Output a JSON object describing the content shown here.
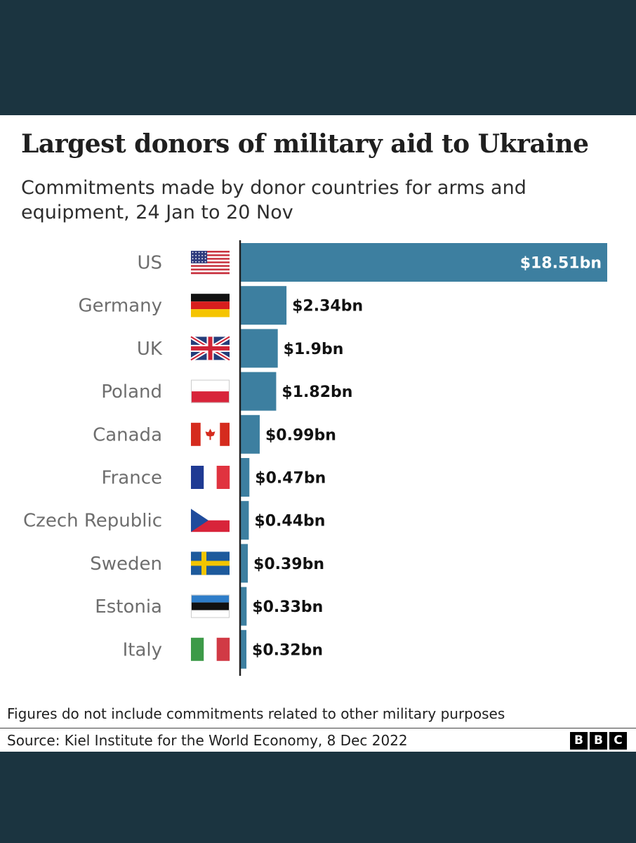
{
  "chart_data": {
    "type": "bar",
    "orientation": "horizontal",
    "title": "Largest donors of military aid to Ukraine",
    "subtitle": "Commitments made by donor countries for arms and equipment, 24 Jan to 20 Nov",
    "categories": [
      "US",
      "Germany",
      "UK",
      "Poland",
      "Canada",
      "France",
      "Czech Republic",
      "Sweden",
      "Estonia",
      "Italy"
    ],
    "values": [
      18.51,
      2.34,
      1.9,
      1.82,
      0.99,
      0.47,
      0.44,
      0.39,
      0.33,
      0.32
    ],
    "data_labels": [
      "$18.51bn",
      "$2.34bn",
      "$1.9bn",
      "$1.82bn",
      "$0.99bn",
      "$0.47bn",
      "$0.44bn",
      "$0.39bn",
      "$0.33bn",
      "$0.32bn"
    ],
    "flags": [
      "us-flag",
      "germany-flag",
      "uk-flag",
      "poland-flag",
      "canada-flag",
      "france-flag",
      "czech-flag",
      "sweden-flag",
      "estonia-flag",
      "italy-flag"
    ],
    "xlim": [
      0,
      18.51
    ],
    "grid": false,
    "bar_color": "#3d7fa0"
  },
  "footer": {
    "note": "Figures do not include commitments related to other military purposes",
    "source": "Source: Kiel Institute for the World Economy, 8 Dec 2022",
    "logo_letters": [
      "B",
      "B",
      "C"
    ]
  },
  "colors": {
    "background": "#1b3440",
    "card": "#ffffff",
    "bar": "#3d7fa0",
    "category_label": "#6e6e6e",
    "value_label_dark": "#111111",
    "value_label_light": "#ffffff"
  }
}
